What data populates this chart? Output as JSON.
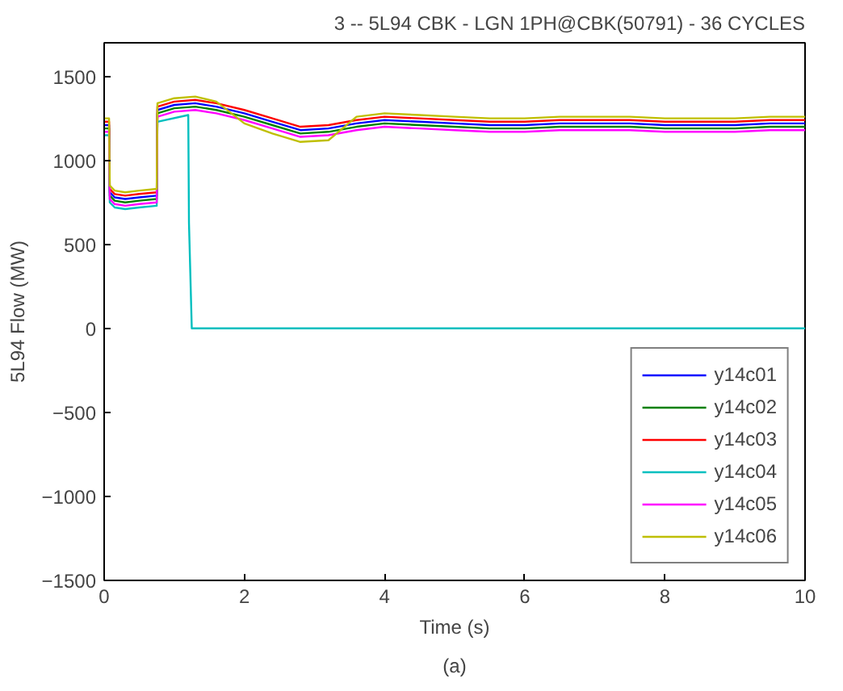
{
  "chart_data": {
    "type": "line",
    "title": "3 -- 5L94 CBK - LGN 1PH@CBK(50791) - 36 CYCLES",
    "xlabel": "Time (s)",
    "ylabel": "5L94 Flow (MW)",
    "annotations": [
      "(a)"
    ],
    "xlim": [
      0,
      10
    ],
    "ylim": [
      -1500,
      1700
    ],
    "xticks": [
      0,
      2,
      4,
      6,
      8,
      10
    ],
    "yticks": [
      -1500,
      -1000,
      -500,
      0,
      500,
      1000,
      1500
    ],
    "grid": false,
    "legend": "bottom right",
    "marker": "none",
    "line_style": "solid",
    "x": [
      0,
      0.07,
      0.08,
      0.15,
      0.3,
      0.5,
      0.75,
      0.76,
      1.0,
      1.3,
      1.6,
      2.0,
      2.4,
      2.8,
      3.2,
      3.6,
      4.0,
      4.5,
      5.0,
      5.5,
      6.0,
      6.5,
      7.0,
      7.5,
      8.0,
      8.5,
      9.0,
      9.5,
      10
    ],
    "series": [
      {
        "name": "y14c01",
        "color": "#0000ff",
        "values": [
          1210,
          1210,
          810,
          780,
          770,
          780,
          790,
          1300,
          1330,
          1340,
          1320,
          1280,
          1230,
          1180,
          1190,
          1220,
          1240,
          1230,
          1220,
          1210,
          1210,
          1220,
          1220,
          1220,
          1210,
          1210,
          1210,
          1220,
          1220
        ]
      },
      {
        "name": "y14c02",
        "color": "#008000",
        "values": [
          1190,
          1190,
          790,
          760,
          750,
          760,
          770,
          1280,
          1310,
          1320,
          1300,
          1260,
          1210,
          1160,
          1170,
          1200,
          1220,
          1210,
          1200,
          1190,
          1190,
          1200,
          1200,
          1200,
          1190,
          1190,
          1190,
          1200,
          1200
        ]
      },
      {
        "name": "y14c03",
        "color": "#ff0000",
        "values": [
          1230,
          1230,
          830,
          800,
          790,
          800,
          810,
          1320,
          1350,
          1360,
          1340,
          1300,
          1250,
          1200,
          1210,
          1240,
          1260,
          1250,
          1240,
          1230,
          1230,
          1240,
          1240,
          1240,
          1230,
          1230,
          1230,
          1240,
          1240
        ]
      },
      {
        "name": "y14c04",
        "color": "#00bfbf",
        "x": [
          0,
          0.07,
          0.08,
          0.15,
          0.3,
          0.5,
          0.75,
          0.76,
          1.2,
          1.21,
          1.25,
          10
        ],
        "values": [
          1150,
          1150,
          750,
          720,
          710,
          720,
          730,
          1230,
          1270,
          630,
          0,
          0
        ]
      },
      {
        "name": "y14c05",
        "color": "#ff00ff",
        "values": [
          1170,
          1170,
          770,
          740,
          730,
          740,
          750,
          1260,
          1290,
          1300,
          1280,
          1240,
          1190,
          1140,
          1150,
          1180,
          1200,
          1190,
          1180,
          1170,
          1170,
          1180,
          1180,
          1180,
          1170,
          1170,
          1170,
          1180,
          1180
        ]
      },
      {
        "name": "y14c06",
        "color": "#bfbf00",
        "values": [
          1250,
          1250,
          850,
          820,
          810,
          820,
          830,
          1340,
          1370,
          1380,
          1350,
          1220,
          1160,
          1110,
          1120,
          1260,
          1280,
          1270,
          1260,
          1250,
          1250,
          1260,
          1260,
          1260,
          1250,
          1250,
          1250,
          1260,
          1260
        ]
      }
    ]
  }
}
